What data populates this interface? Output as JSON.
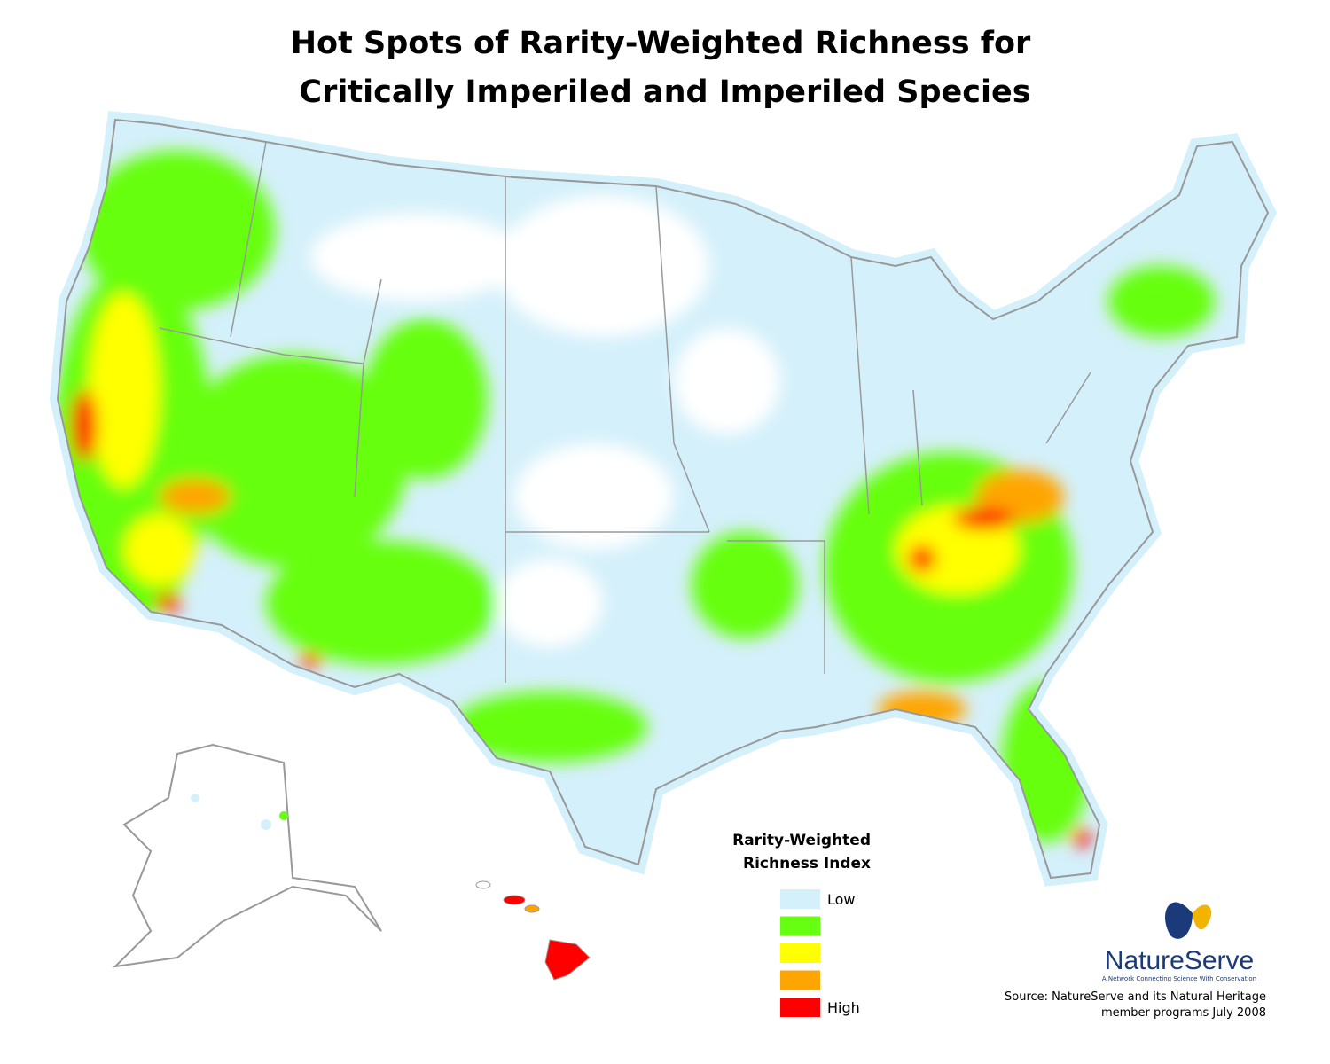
{
  "header": {
    "title_lines": [
      "Hot Spots of Rarity-Weighted Richness for",
      "Critically Imperiled and Imperiled Species"
    ]
  },
  "legend": {
    "title_lines": [
      "Rarity-Weighted",
      "Richness Index"
    ],
    "items": [
      {
        "color": "#d4f0fa",
        "label": "Low"
      },
      {
        "color": "#66ff11"
      },
      {
        "color": "#ffff00"
      },
      {
        "color": "#ffa500"
      },
      {
        "color": "#ff0000",
        "label": "High"
      }
    ]
  },
  "logo": {
    "name": "NatureServe",
    "tagline": "A Network Connecting Science With Conservation"
  },
  "source": {
    "lines": [
      "Source: NatureServe and its Natural Heritage",
      "member programs July 2008"
    ]
  }
}
